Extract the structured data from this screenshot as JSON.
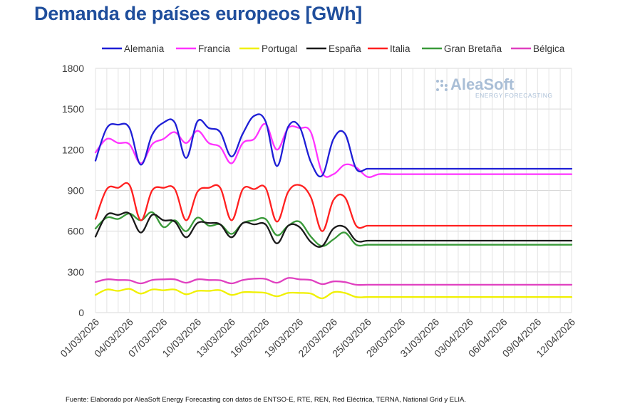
{
  "chart_data": {
    "type": "line",
    "title": "Demanda de países europeos [GWh]",
    "xlabel": "",
    "ylabel": "",
    "ylim": [
      0,
      1800
    ],
    "yticks": [
      0,
      300,
      600,
      900,
      1200,
      1500,
      1800
    ],
    "grid": true,
    "legend_position": "top",
    "x": [
      "01/03/2026",
      "02/03/2026",
      "03/03/2026",
      "04/03/2026",
      "05/03/2026",
      "06/03/2026",
      "07/03/2026",
      "08/03/2026",
      "09/03/2026",
      "10/03/2026",
      "11/03/2026",
      "12/03/2026",
      "13/03/2026",
      "14/03/2026",
      "15/03/2026",
      "16/03/2026",
      "17/03/2026",
      "18/03/2026",
      "19/03/2026",
      "20/03/2026",
      "21/03/2026",
      "22/03/2026",
      "23/03/2026",
      "24/03/2026",
      "25/03/2026",
      "26/03/2026",
      "27/03/2026",
      "28/03/2026",
      "29/03/2026",
      "30/03/2026",
      "31/03/2026",
      "01/04/2026",
      "02/04/2026",
      "03/04/2026",
      "04/04/2026",
      "05/04/2026",
      "06/04/2026",
      "07/04/2026",
      "08/04/2026",
      "09/04/2026",
      "10/04/2026",
      "11/04/2026",
      "12/04/2026"
    ],
    "xtick_labels": [
      "01/03/2026",
      "04/03/2026",
      "07/03/2026",
      "10/03/2026",
      "13/03/2026",
      "16/03/2026",
      "19/03/2026",
      "22/03/2026",
      "25/03/2026",
      "28/03/2026",
      "31/03/2026",
      "03/04/2026",
      "06/04/2026",
      "09/04/2026",
      "12/04/2026"
    ],
    "series": [
      {
        "name": "Alemania",
        "color": "#1f1fd6",
        "values": [
          1120,
          1360,
          1385,
          1360,
          1090,
          1310,
          1400,
          1400,
          1140,
          1410,
          1360,
          1330,
          1150,
          1320,
          1450,
          1410,
          1080,
          1370,
          1370,
          1110,
          1010,
          1280,
          1320,
          1060,
          1060,
          1060,
          1060,
          1060,
          1060,
          1060,
          1060,
          1060,
          1060,
          1060,
          1060,
          1060,
          1060,
          1060,
          1060,
          1060,
          1060,
          1060,
          1060
        ]
      },
      {
        "name": "Francia",
        "color": "#ff33ff",
        "values": [
          1180,
          1280,
          1250,
          1240,
          1100,
          1240,
          1280,
          1330,
          1250,
          1340,
          1250,
          1220,
          1100,
          1250,
          1280,
          1390,
          1200,
          1360,
          1360,
          1330,
          1030,
          1020,
          1090,
          1070,
          1000,
          1020,
          1020,
          1020,
          1020,
          1020,
          1020,
          1020,
          1020,
          1020,
          1020,
          1020,
          1020,
          1020,
          1020,
          1020,
          1020,
          1020,
          1020
        ]
      },
      {
        "name": "Portugal",
        "color": "#f0f000",
        "values": [
          130,
          170,
          160,
          175,
          140,
          170,
          165,
          170,
          135,
          160,
          160,
          165,
          130,
          150,
          150,
          145,
          120,
          145,
          145,
          140,
          105,
          150,
          145,
          115,
          115,
          115,
          115,
          115,
          115,
          115,
          115,
          115,
          115,
          115,
          115,
          115,
          115,
          115,
          115,
          115,
          115,
          115,
          115
        ]
      },
      {
        "name": "España",
        "color": "#1a1a1a",
        "values": [
          560,
          720,
          720,
          730,
          590,
          720,
          680,
          670,
          555,
          660,
          660,
          650,
          555,
          660,
          650,
          650,
          510,
          640,
          630,
          520,
          490,
          620,
          630,
          530,
          530,
          530,
          530,
          530,
          530,
          530,
          530,
          530,
          530,
          530,
          530,
          530,
          530,
          530,
          530,
          530,
          530,
          530,
          530
        ]
      },
      {
        "name": "Italia",
        "color": "#ff2020",
        "values": [
          690,
          910,
          920,
          940,
          680,
          900,
          920,
          910,
          680,
          890,
          920,
          920,
          680,
          910,
          910,
          920,
          670,
          890,
          940,
          850,
          600,
          830,
          850,
          640,
          640,
          640,
          640,
          640,
          640,
          640,
          640,
          640,
          640,
          640,
          640,
          640,
          640,
          640,
          640,
          640,
          640,
          640,
          640
        ]
      },
      {
        "name": "Gran Bretaña",
        "color": "#3a9a3a",
        "values": [
          620,
          700,
          690,
          730,
          680,
          740,
          630,
          680,
          600,
          700,
          640,
          650,
          580,
          660,
          680,
          690,
          570,
          640,
          670,
          560,
          490,
          540,
          590,
          500,
          500,
          500,
          500,
          500,
          500,
          500,
          500,
          500,
          500,
          500,
          500,
          500,
          500,
          500,
          500,
          500,
          500,
          500,
          500
        ]
      },
      {
        "name": "Bélgica",
        "color": "#e040c0",
        "values": [
          225,
          245,
          240,
          238,
          215,
          240,
          245,
          245,
          220,
          245,
          240,
          238,
          215,
          240,
          250,
          248,
          220,
          255,
          245,
          240,
          210,
          230,
          225,
          205,
          205,
          205,
          205,
          205,
          205,
          205,
          205,
          205,
          205,
          205,
          205,
          205,
          205,
          205,
          205,
          205,
          205,
          205,
          205
        ]
      }
    ]
  },
  "watermark": {
    "brand": "AleaSoft",
    "tagline": "ENERGY FORECASTING"
  },
  "footer": "Fuente: Elaborado por AleaSoft Energy Forecasting con datos de ENTSO-E, RTE, REN, Red Eléctrica, TERNA, National Grid y ELIA."
}
